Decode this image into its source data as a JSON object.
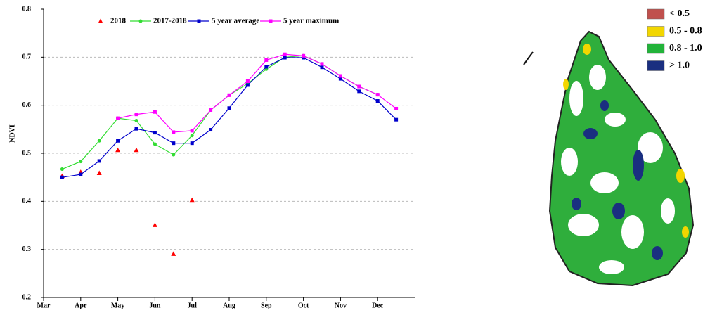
{
  "chart_data": {
    "type": "line",
    "y_label": "NDVI",
    "x": [
      0.5,
      1,
      1.5,
      2,
      2.5,
      3,
      3.5,
      4,
      4.5,
      5,
      5.5,
      6,
      6.5,
      7,
      7.5,
      8,
      8.5,
      9,
      9.5
    ],
    "xlim": [
      0,
      10
    ],
    "xticks": [
      {
        "value": 0,
        "label": "Mar"
      },
      {
        "value": 1,
        "label": "Apr"
      },
      {
        "value": 2,
        "label": "May"
      },
      {
        "value": 3,
        "label": "Jun"
      },
      {
        "value": 4,
        "label": "Jul"
      },
      {
        "value": 5,
        "label": "Aug"
      },
      {
        "value": 6,
        "label": "Sep"
      },
      {
        "value": 7,
        "label": "Oct"
      },
      {
        "value": 8,
        "label": "Nov"
      },
      {
        "value": 9,
        "label": "Dec"
      }
    ],
    "ylim": [
      0.2,
      0.8
    ],
    "yticks": [
      0.2,
      0.3,
      0.4,
      0.5,
      0.6,
      0.7,
      0.8
    ],
    "grid": true,
    "series": [
      {
        "name": "2018",
        "color": "#ff0000",
        "marker": "triangle",
        "line": false,
        "values": [
          0.453,
          0.461,
          0.459,
          0.507,
          0.507,
          0.351,
          0.291,
          0.403,
          null,
          null,
          null,
          null,
          null,
          null,
          null,
          null,
          null,
          null,
          null
        ]
      },
      {
        "name": "2017-2018",
        "color": "#33dd33",
        "marker": "circle",
        "line": true,
        "values": [
          0.467,
          0.483,
          0.526,
          0.573,
          0.568,
          0.519,
          0.497,
          0.537,
          0.59,
          0.621,
          0.645,
          0.675,
          0.7,
          0.703,
          0.686,
          0.661,
          0.639,
          0.622,
          null
        ]
      },
      {
        "name": "5 year average",
        "color": "#0000cc",
        "marker": "square",
        "line": true,
        "values": [
          0.45,
          0.456,
          0.484,
          0.526,
          0.551,
          0.543,
          0.521,
          0.521,
          0.549,
          0.594,
          0.642,
          0.68,
          0.699,
          0.699,
          0.679,
          0.655,
          0.629,
          0.609,
          0.57
        ]
      },
      {
        "name": "5 year maximum",
        "color": "#ff00ff",
        "marker": "square",
        "line": true,
        "values": [
          null,
          null,
          null,
          0.573,
          0.581,
          0.586,
          0.544,
          0.547,
          0.59,
          0.621,
          0.65,
          0.694,
          0.706,
          0.703,
          0.686,
          0.661,
          0.639,
          0.622,
          0.593
        ]
      }
    ]
  },
  "map": {
    "legend": [
      {
        "label": "< 0.5",
        "color": "#c0504d"
      },
      {
        "label": "0.5 - 0.8",
        "color": "#f2d600"
      },
      {
        "label": "0.8 - 1.0",
        "color": "#22b33a"
      },
      {
        "label": "> 1.0",
        "color": "#1a2f80"
      }
    ]
  }
}
